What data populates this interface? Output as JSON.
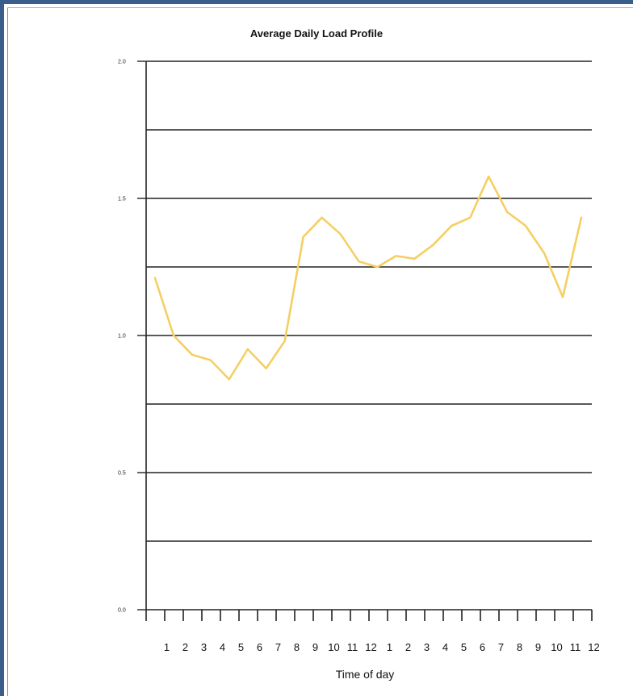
{
  "chart_data": {
    "type": "line",
    "title": "Average Daily Load Profile",
    "xlabel": "Time of day",
    "ylabel": "",
    "ylim": [
      0.0,
      2.0
    ],
    "yticks": [
      0.0,
      0.5,
      1.0,
      1.5,
      2.0
    ],
    "ytick_labels": [
      "0.0",
      "0.5",
      "1.0",
      "1.5",
      "2.0"
    ],
    "gridlines": [
      0.25,
      0.5,
      0.75,
      1.0,
      1.25,
      1.5,
      1.75
    ],
    "x_tick_labels": [
      "1",
      "2",
      "3",
      "4",
      "5",
      "6",
      "7",
      "8",
      "9",
      "10",
      "11",
      "12",
      "1",
      "2",
      "3",
      "4",
      "5",
      "6",
      "7",
      "8",
      "9",
      "10",
      "11",
      "12"
    ],
    "series": [
      {
        "color": "#f5cf63",
        "values": [
          1.21,
          1.0,
          0.93,
          0.91,
          0.84,
          0.95,
          0.88,
          0.98,
          1.36,
          1.43,
          1.37,
          1.27,
          1.25,
          1.29,
          1.28,
          1.33,
          1.4,
          1.43,
          1.58,
          1.45,
          1.4,
          1.3,
          1.14,
          1.43
        ]
      }
    ],
    "grid": true,
    "line_color": "#f5cf63",
    "axis_color": "#222222"
  }
}
